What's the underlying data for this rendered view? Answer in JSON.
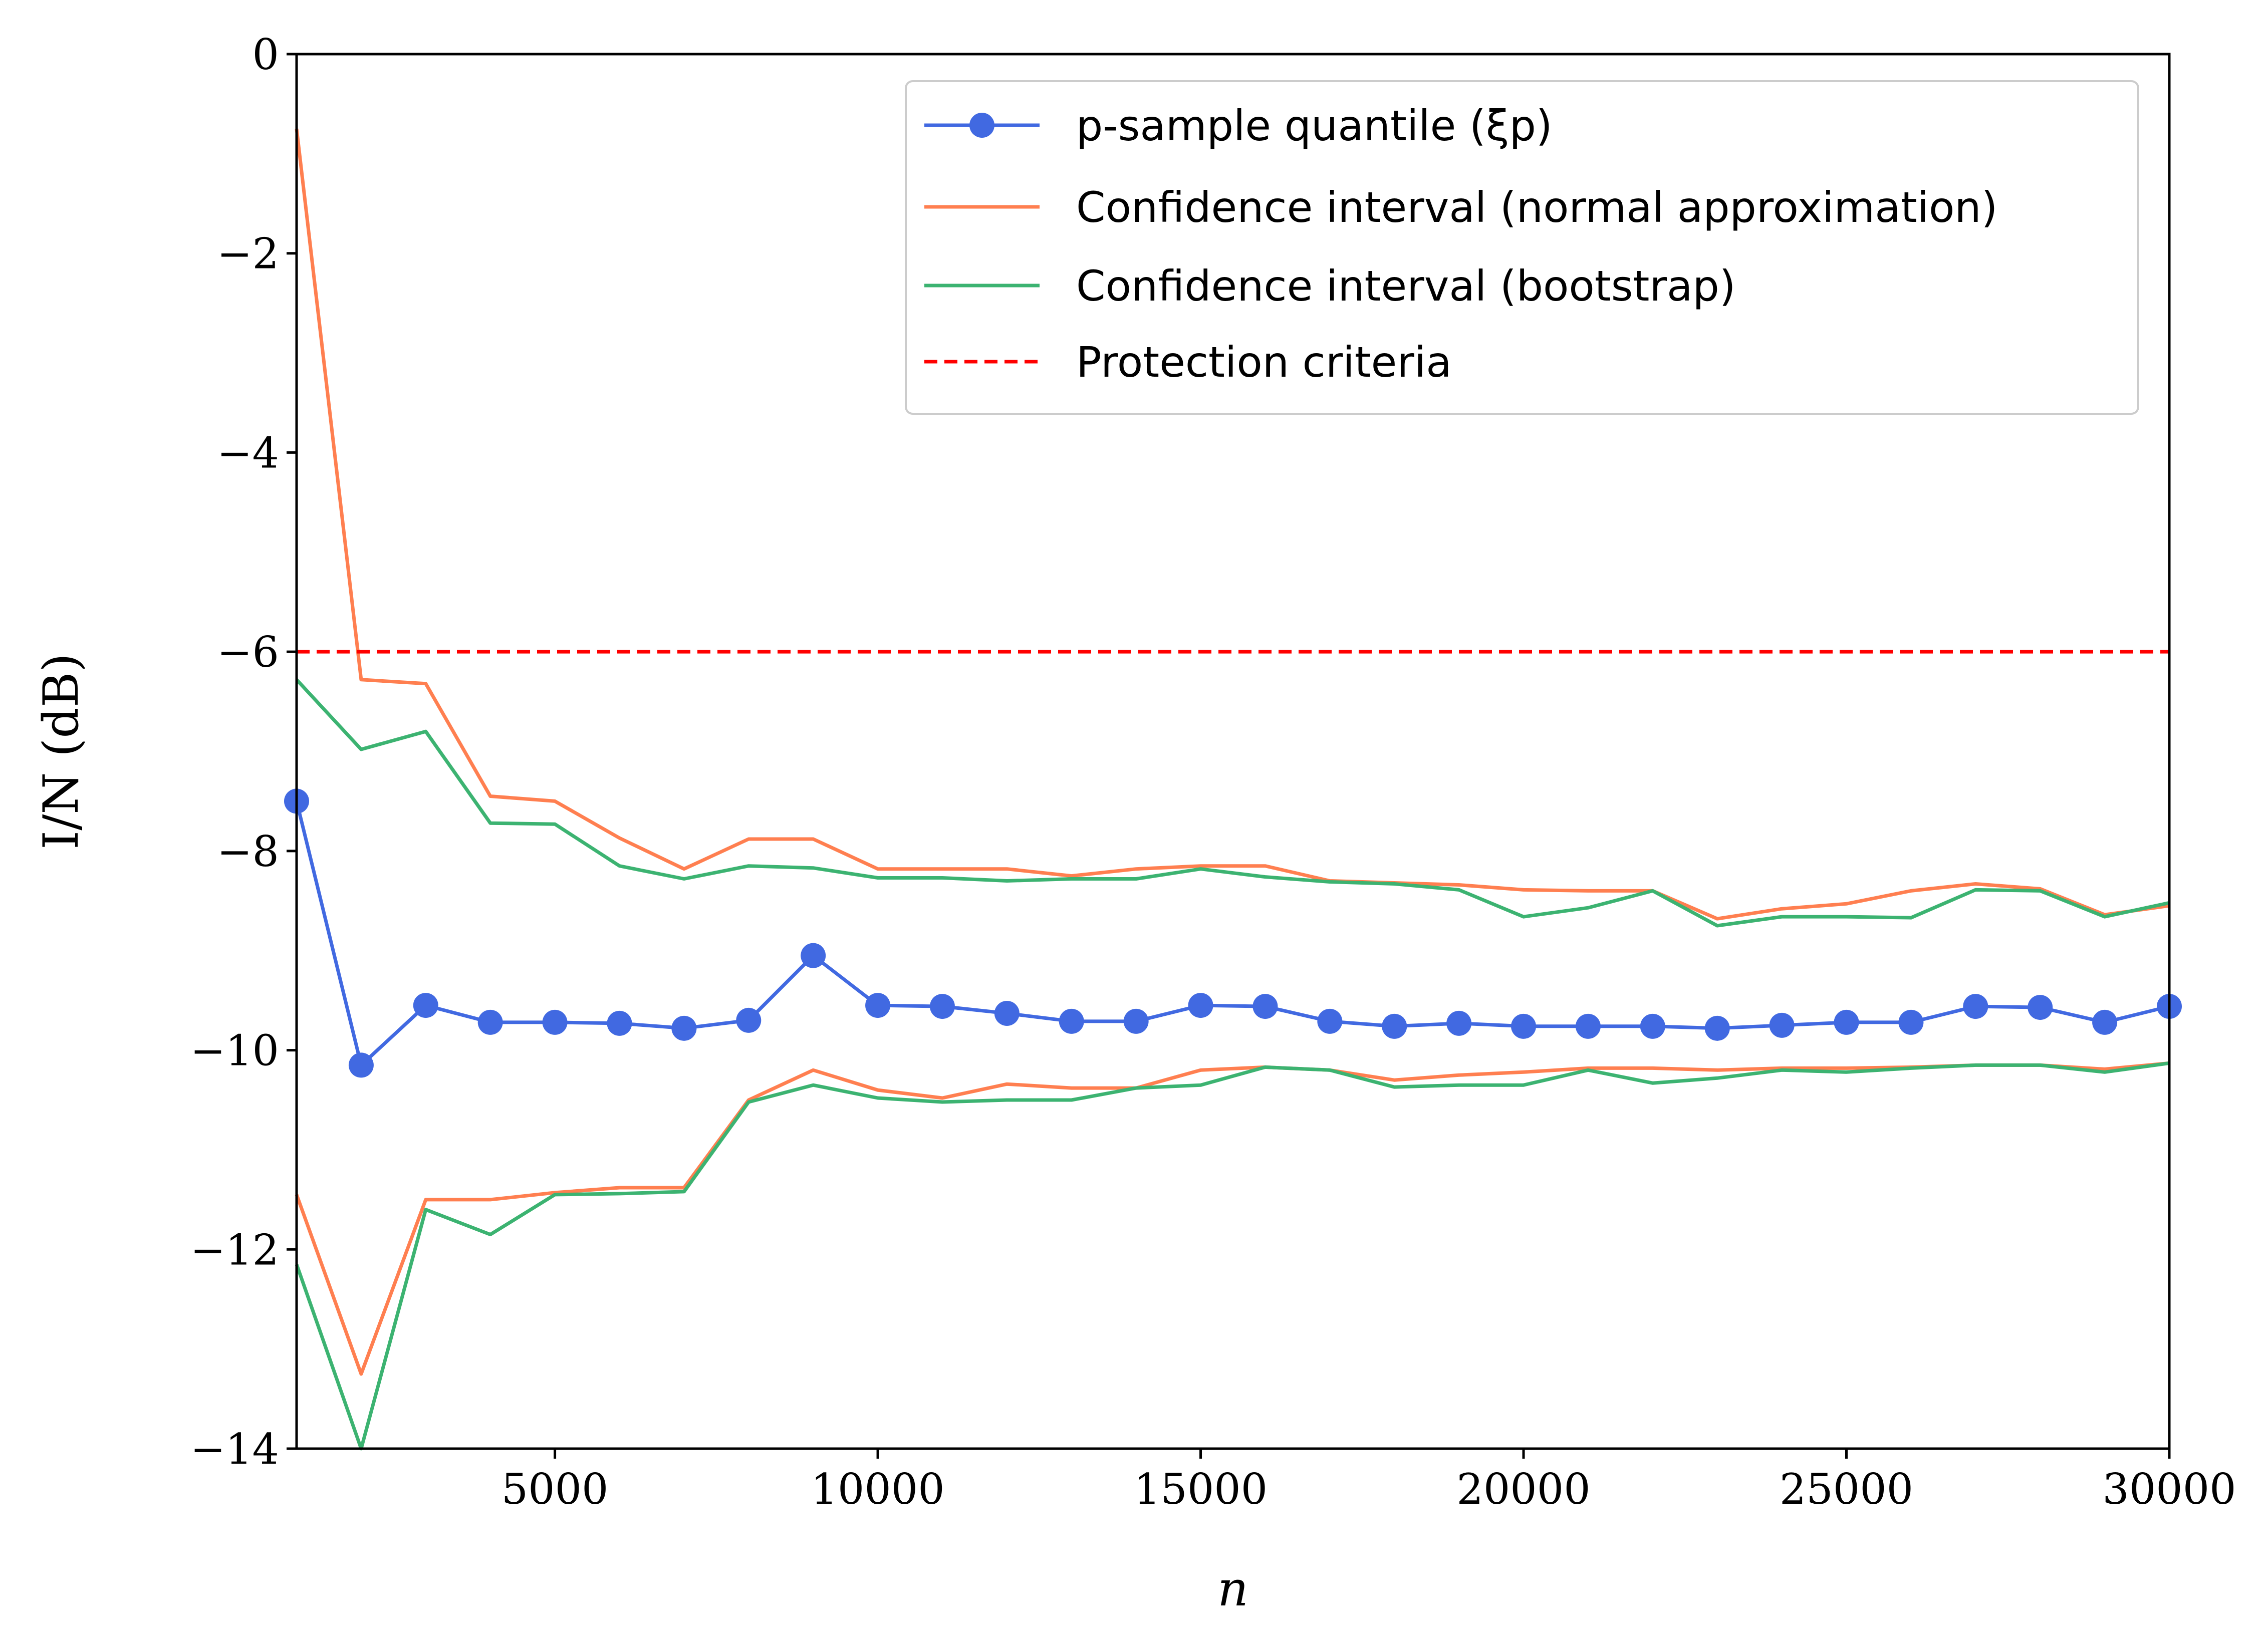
{
  "chart_data": {
    "type": "line",
    "xlabel": "n",
    "ylabel": "I/N (dB)",
    "xlim": [
      1000,
      30000
    ],
    "ylim": [
      -14,
      0
    ],
    "x_ticks": [
      5000,
      10000,
      15000,
      20000,
      25000,
      30000
    ],
    "y_ticks": [
      0,
      -2,
      -4,
      -6,
      -8,
      -10,
      -12,
      -14
    ],
    "x_tick_labels": [
      "5000",
      "10000",
      "15000",
      "20000",
      "25000",
      "30000"
    ],
    "y_tick_labels": [
      "0",
      "−2",
      "−4",
      "−6",
      "−8",
      "−10",
      "−12",
      "−14"
    ],
    "legend_position": "top-right",
    "x": [
      1000,
      2000,
      3000,
      4000,
      5000,
      6000,
      7000,
      8000,
      9000,
      10000,
      11000,
      12000,
      13000,
      14000,
      15000,
      16000,
      17000,
      18000,
      19000,
      20000,
      21000,
      22000,
      23000,
      24000,
      25000,
      26000,
      27000,
      28000,
      29000,
      30000
    ],
    "series": [
      {
        "name": "p-sample quantile (ξp)",
        "color": "#4169e1",
        "style": "line-marker",
        "values": [
          -7.5,
          -10.15,
          -9.55,
          -9.72,
          -9.72,
          -9.73,
          -9.78,
          -9.7,
          -9.05,
          -9.55,
          -9.56,
          -9.63,
          -9.71,
          -9.71,
          -9.55,
          -9.56,
          -9.71,
          -9.76,
          -9.73,
          -9.76,
          -9.76,
          -9.76,
          -9.78,
          -9.75,
          -9.72,
          -9.72,
          -9.56,
          -9.57,
          -9.72,
          -9.56
        ]
      },
      {
        "name": "Confidence interval (normal approximation)",
        "color": "#ff7f50",
        "style": "line",
        "values": [
          -0.75,
          -6.28,
          -6.32,
          -7.45,
          -7.5,
          -7.87,
          -8.18,
          -7.88,
          -7.88,
          -8.18,
          -8.18,
          -8.18,
          -8.25,
          -8.18,
          -8.15,
          -8.15,
          -8.3,
          -8.32,
          -8.34,
          -8.39,
          -8.4,
          -8.4,
          -8.68,
          -8.58,
          -8.53,
          -8.4,
          -8.33,
          -8.38,
          -8.64,
          -8.55
        ]
      },
      {
        "name": "",
        "color": "#ff7f50",
        "style": "line",
        "values": [
          -11.45,
          -13.25,
          -11.5,
          -11.5,
          -11.43,
          -11.38,
          -11.38,
          -10.5,
          -10.2,
          -10.4,
          -10.48,
          -10.34,
          -10.38,
          -10.38,
          -10.2,
          -10.17,
          -10.2,
          -10.3,
          -10.25,
          -10.22,
          -10.18,
          -10.18,
          -10.2,
          -10.18,
          -10.18,
          -10.17,
          -10.15,
          -10.15,
          -10.19,
          -10.13
        ]
      },
      {
        "name": "Confidence interval (bootstrap)",
        "color": "#3cb371",
        "style": "line",
        "values": [
          -6.28,
          -6.98,
          -6.8,
          -7.72,
          -7.73,
          -8.15,
          -8.28,
          -8.15,
          -8.17,
          -8.27,
          -8.27,
          -8.3,
          -8.28,
          -8.28,
          -8.18,
          -8.26,
          -8.31,
          -8.33,
          -8.39,
          -8.66,
          -8.57,
          -8.4,
          -8.75,
          -8.66,
          -8.66,
          -8.67,
          -8.39,
          -8.4,
          -8.66,
          -8.52
        ]
      },
      {
        "name": "",
        "color": "#3cb371",
        "style": "line",
        "values": [
          -12.15,
          -14.0,
          -11.6,
          -11.85,
          -11.45,
          -11.44,
          -11.42,
          -10.52,
          -10.35,
          -10.48,
          -10.52,
          -10.5,
          -10.5,
          -10.38,
          -10.35,
          -10.17,
          -10.2,
          -10.37,
          -10.35,
          -10.35,
          -10.2,
          -10.33,
          -10.28,
          -10.2,
          -10.22,
          -10.18,
          -10.15,
          -10.15,
          -10.22,
          -10.13
        ]
      },
      {
        "name": "Protection criteria",
        "color": "#ff0000",
        "style": "dashed",
        "constant": -6
      }
    ]
  }
}
